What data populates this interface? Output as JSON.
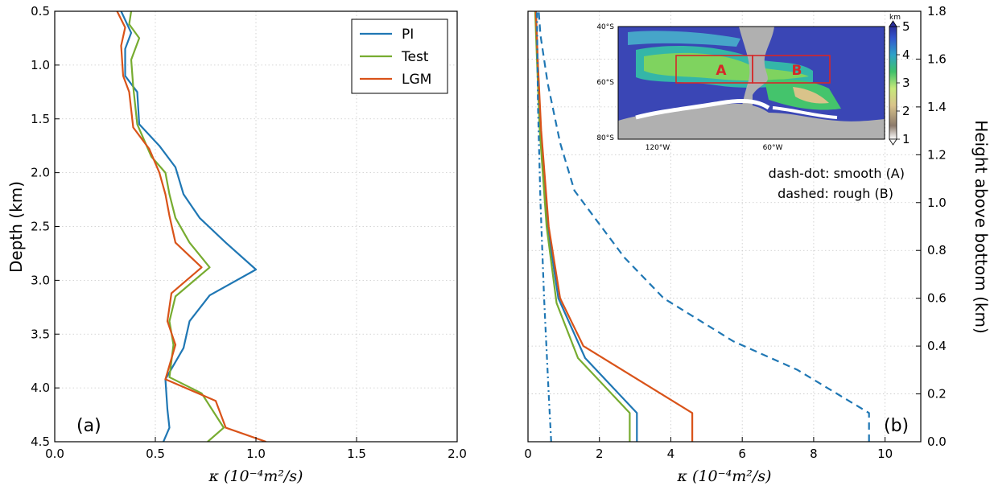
{
  "colors": {
    "PI": "#1f77b4",
    "Test": "#77ac30",
    "LGM": "#d95319",
    "region_box": "#d62728"
  },
  "chart_data": [
    {
      "type": "line",
      "panel_label": "(a)",
      "xlabel": "κ (10⁻⁴m²/s)",
      "ylabel": "Depth (km)",
      "xlim": [
        0.0,
        2.0
      ],
      "ylim": [
        4.5,
        0.5
      ],
      "y_inverted": true,
      "grid": true,
      "xticks": [
        "0.0",
        "0.5",
        "1.0",
        "1.5",
        "2.0"
      ],
      "yticks": [
        "0.5",
        "1.0",
        "1.5",
        "2.0",
        "2.5",
        "3.0",
        "3.5",
        "4.0",
        "4.5"
      ],
      "legend": {
        "position": "top-right",
        "entries": [
          "PI",
          "Test",
          "LGM"
        ]
      },
      "series": [
        {
          "name": "PI",
          "points": [
            [
              0.33,
              0.5
            ],
            [
              0.38,
              0.7
            ],
            [
              0.35,
              0.85
            ],
            [
              0.35,
              1.1
            ],
            [
              0.41,
              1.25
            ],
            [
              0.42,
              1.55
            ],
            [
              0.52,
              1.75
            ],
            [
              0.6,
              1.95
            ],
            [
              0.64,
              2.2
            ],
            [
              0.72,
              2.42
            ],
            [
              0.85,
              2.65
            ],
            [
              1.0,
              2.9
            ],
            [
              0.77,
              3.14
            ],
            [
              0.67,
              3.38
            ],
            [
              0.64,
              3.63
            ],
            [
              0.55,
              3.92
            ],
            [
              0.56,
              4.2
            ],
            [
              0.57,
              4.37
            ],
            [
              0.54,
              4.5
            ]
          ]
        },
        {
          "name": "Test",
          "points": [
            [
              0.38,
              0.5
            ],
            [
              0.37,
              0.62
            ],
            [
              0.42,
              0.75
            ],
            [
              0.38,
              0.95
            ],
            [
              0.39,
              1.2
            ],
            [
              0.41,
              1.55
            ],
            [
              0.48,
              1.85
            ],
            [
              0.55,
              2.0
            ],
            [
              0.57,
              2.2
            ],
            [
              0.6,
              2.42
            ],
            [
              0.67,
              2.65
            ],
            [
              0.77,
              2.88
            ],
            [
              0.6,
              3.15
            ],
            [
              0.57,
              3.38
            ],
            [
              0.59,
              3.6
            ],
            [
              0.57,
              3.9
            ],
            [
              0.73,
              4.05
            ],
            [
              0.84,
              4.37
            ],
            [
              0.76,
              4.5
            ]
          ]
        },
        {
          "name": "LGM",
          "points": [
            [
              0.31,
              0.5
            ],
            [
              0.35,
              0.65
            ],
            [
              0.33,
              0.82
            ],
            [
              0.34,
              1.1
            ],
            [
              0.37,
              1.25
            ],
            [
              0.39,
              1.58
            ],
            [
              0.47,
              1.78
            ],
            [
              0.52,
              2.0
            ],
            [
              0.55,
              2.2
            ],
            [
              0.57,
              2.4
            ],
            [
              0.6,
              2.65
            ],
            [
              0.73,
              2.88
            ],
            [
              0.58,
              3.12
            ],
            [
              0.56,
              3.38
            ],
            [
              0.6,
              3.6
            ],
            [
              0.55,
              3.92
            ],
            [
              0.8,
              4.12
            ],
            [
              0.85,
              4.37
            ],
            [
              1.05,
              4.5
            ]
          ]
        }
      ]
    },
    {
      "type": "line",
      "panel_label": "(b)",
      "xlabel": "κ (10⁻⁴m²/s)",
      "ylabel": "Height above bottom (km)",
      "xlim": [
        0,
        11
      ],
      "ylim": [
        0.0,
        1.8
      ],
      "grid": true,
      "xticks": [
        "0",
        "2",
        "4",
        "6",
        "8",
        "10"
      ],
      "yticks": [
        "0.0",
        "0.2",
        "0.4",
        "0.6",
        "0.8",
        "1.0",
        "1.2",
        "1.4",
        "1.6",
        "1.8"
      ],
      "annotations": [
        "dash-dot: smooth (A)",
        "dashed: rough (B)"
      ],
      "series": [
        {
          "name": "PI",
          "style": "solid",
          "points": [
            [
              3.05,
              0.0
            ],
            [
              3.05,
              0.12
            ],
            [
              1.6,
              0.35
            ],
            [
              0.85,
              0.6
            ],
            [
              0.55,
              0.9
            ],
            [
              0.35,
              1.3
            ],
            [
              0.27,
              1.6
            ],
            [
              0.22,
              1.8
            ]
          ]
        },
        {
          "name": "Test",
          "style": "solid",
          "points": [
            [
              2.85,
              0.0
            ],
            [
              2.85,
              0.12
            ],
            [
              1.4,
              0.35
            ],
            [
              0.8,
              0.58
            ],
            [
              0.52,
              0.9
            ],
            [
              0.33,
              1.3
            ],
            [
              0.25,
              1.6
            ],
            [
              0.2,
              1.8
            ]
          ]
        },
        {
          "name": "LGM",
          "style": "solid",
          "points": [
            [
              4.6,
              0.0
            ],
            [
              4.6,
              0.12
            ],
            [
              1.55,
              0.4
            ],
            [
              0.9,
              0.6
            ],
            [
              0.58,
              0.9
            ],
            [
              0.37,
              1.3
            ],
            [
              0.27,
              1.6
            ],
            [
              0.22,
              1.8
            ]
          ]
        },
        {
          "name": "rough (B)",
          "style": "dashed",
          "color": "PI",
          "points": [
            [
              9.55,
              0.0
            ],
            [
              9.55,
              0.12
            ],
            [
              7.55,
              0.3
            ],
            [
              5.75,
              0.42
            ],
            [
              3.8,
              0.6
            ],
            [
              2.7,
              0.77
            ],
            [
              2.05,
              0.9
            ],
            [
              1.3,
              1.05
            ],
            [
              0.9,
              1.25
            ],
            [
              0.55,
              1.5
            ],
            [
              0.35,
              1.7
            ],
            [
              0.3,
              1.8
            ]
          ]
        },
        {
          "name": "smooth (A)",
          "style": "dashdot",
          "color": "PI",
          "points": [
            [
              0.65,
              0.0
            ],
            [
              0.58,
              0.2
            ],
            [
              0.45,
              0.6
            ],
            [
              0.35,
              1.0
            ],
            [
              0.28,
              1.4
            ],
            [
              0.25,
              1.8
            ]
          ]
        }
      ]
    },
    {
      "type": "heatmap",
      "role": "inset map",
      "colorbar": {
        "label": "km",
        "ticks": [
          "1",
          "2",
          "3",
          "4",
          "5"
        ],
        "range": [
          1,
          5
        ]
      },
      "xticks": [
        "120°W",
        "60°W"
      ],
      "yticks": [
        "40°S",
        "60°S",
        "80°S"
      ],
      "regions": [
        {
          "name": "A",
          "lon": [
            -130,
            -70
          ],
          "lat": [
            -50,
            -60
          ]
        },
        {
          "name": "B",
          "lon": [
            -70,
            -20
          ],
          "lat": [
            -50,
            -60
          ]
        }
      ]
    }
  ]
}
